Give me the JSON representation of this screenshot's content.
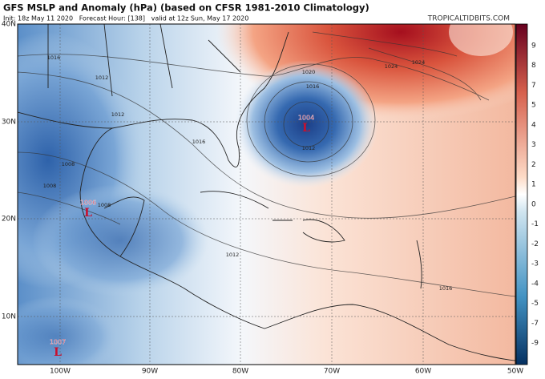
{
  "header": {
    "title": "GFS MSLP and Anomaly (hPa) (based on CFSR 1981-2010 Climatology)",
    "subtitle": "Init: 18z May 11 2020   Forecast Hour: [138]   valid at 12z Sun, May 17 2020",
    "source": "TROPICALTIDBITS.COM"
  },
  "map": {
    "lat_labels": [
      "40N",
      "30N",
      "20N",
      "10N"
    ],
    "lon_labels": [
      "100W",
      "90W",
      "80W",
      "70W",
      "60W",
      "50W"
    ],
    "isobar_labels": [
      "1016",
      "1012",
      "1012",
      "1020",
      "1016",
      "1024",
      "1024",
      "1016",
      "1008",
      "1008",
      "1008",
      "1012",
      "1012",
      "1016"
    ],
    "centers": [
      {
        "value": "1004",
        "symbol": "L"
      },
      {
        "value": "1006",
        "symbol": "L"
      },
      {
        "value": "1007",
        "symbol": "L"
      }
    ]
  },
  "colorbar": {
    "ticks": [
      9,
      8,
      7,
      5,
      4,
      3,
      2,
      1,
      0,
      -1,
      -2,
      -3,
      -4,
      -5,
      -7,
      -9
    ]
  }
}
